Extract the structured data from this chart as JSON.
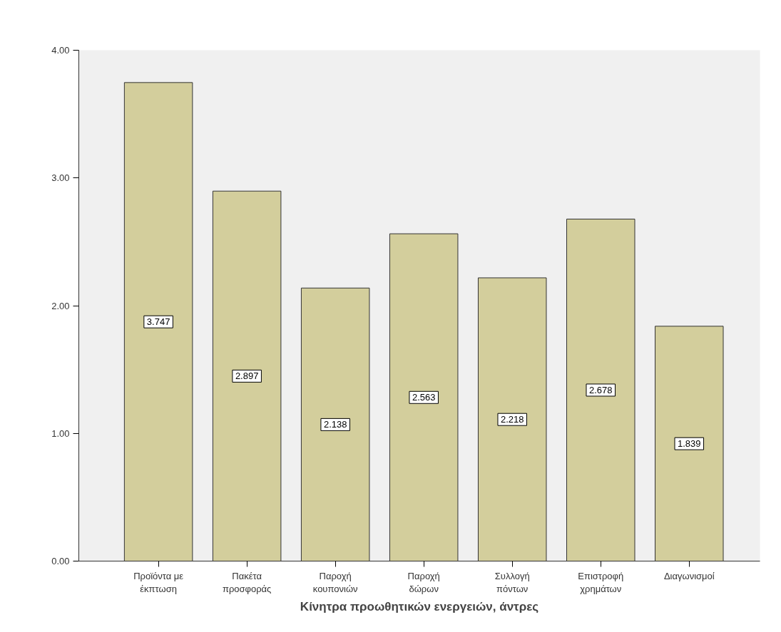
{
  "chart_data": {
    "type": "bar",
    "xlabel": "Κίνητρα προωθητικών ενεργειών, άντρες",
    "categories": [
      "Προϊόντα με\nέκπτωση",
      "Πακέτα\nπροσφοράς",
      "Παροχή\nκουπονιών",
      "Παροχή\nδώρων",
      "Συλλογή\nπόντων",
      "Επιστροφή\nχρημάτων",
      "Διαγωνισμοί"
    ],
    "values": [
      3.747,
      2.897,
      2.138,
      2.563,
      2.218,
      2.678,
      1.839
    ],
    "color": "#d3ce9c",
    "data_labels": true,
    "grid": false,
    "ylim": [
      0,
      4
    ],
    "yticks": [
      {
        "value": 0,
        "label": "0.00"
      },
      {
        "value": 1,
        "label": "1.00"
      },
      {
        "value": 2,
        "label": "2.00"
      },
      {
        "value": 3,
        "label": "3.00"
      },
      {
        "value": 4,
        "label": "4.00"
      }
    ]
  }
}
